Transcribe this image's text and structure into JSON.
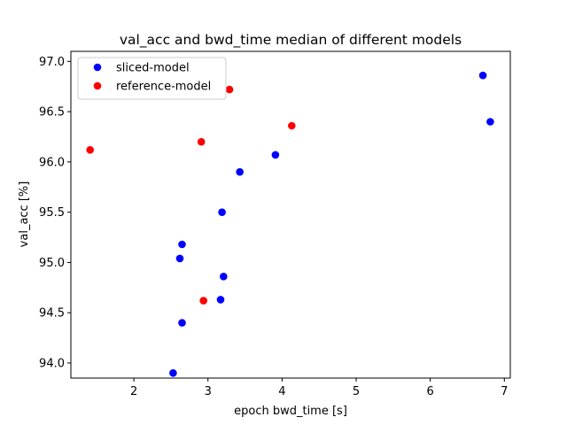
{
  "chart_data": {
    "type": "scatter",
    "title": "val_acc and bwd_time median of different models",
    "xlabel": "epoch bwd_time [s]",
    "ylabel": "val_acc [%]",
    "xlim": [
      1.15,
      7.08
    ],
    "ylim": [
      93.85,
      97.1
    ],
    "xticks": [
      2,
      3,
      4,
      5,
      6,
      7
    ],
    "xtick_labels": [
      "2",
      "3",
      "4",
      "5",
      "6",
      "7"
    ],
    "yticks": [
      94.0,
      94.5,
      95.0,
      95.5,
      96.0,
      96.5,
      97.0
    ],
    "ytick_labels": [
      "94.0",
      "94.5",
      "95.0",
      "95.5",
      "96.0",
      "96.5",
      "97.0"
    ],
    "grid": false,
    "legend_position": "upper-left",
    "series": [
      {
        "name": "sliced-model",
        "color": "#0000ff",
        "points": [
          {
            "x": 6.71,
            "y": 96.86
          },
          {
            "x": 6.81,
            "y": 96.4
          },
          {
            "x": 3.91,
            "y": 96.07
          },
          {
            "x": 3.43,
            "y": 95.9
          },
          {
            "x": 3.19,
            "y": 95.5
          },
          {
            "x": 2.65,
            "y": 95.18
          },
          {
            "x": 2.62,
            "y": 95.04
          },
          {
            "x": 3.21,
            "y": 94.86
          },
          {
            "x": 3.17,
            "y": 94.63
          },
          {
            "x": 2.65,
            "y": 94.4
          },
          {
            "x": 2.53,
            "y": 93.9
          }
        ]
      },
      {
        "name": "reference-model",
        "color": "#ff0000",
        "points": [
          {
            "x": 3.29,
            "y": 96.72
          },
          {
            "x": 4.13,
            "y": 96.36
          },
          {
            "x": 2.91,
            "y": 96.2
          },
          {
            "x": 1.41,
            "y": 96.12
          },
          {
            "x": 2.94,
            "y": 94.62
          }
        ]
      }
    ]
  }
}
